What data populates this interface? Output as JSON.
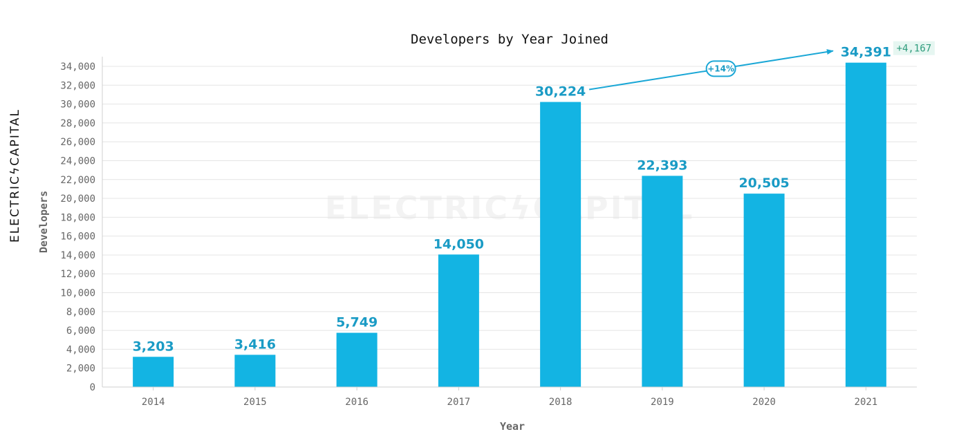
{
  "chart_data": {
    "type": "bar",
    "title": "Developers by Year Joined",
    "xlabel": "Year",
    "ylabel": "Developers",
    "categories": [
      "2014",
      "2015",
      "2016",
      "2017",
      "2018",
      "2019",
      "2020",
      "2021"
    ],
    "values": [
      3203,
      3416,
      5749,
      14050,
      30224,
      22393,
      20505,
      34391
    ],
    "value_labels": [
      "3,203",
      "3,416",
      "5,749",
      "14,050",
      "30,224",
      "22,393",
      "20,505",
      "34,391"
    ],
    "ylim": [
      0,
      35000
    ],
    "yticks": [
      0,
      2000,
      4000,
      6000,
      8000,
      10000,
      12000,
      14000,
      16000,
      18000,
      20000,
      22000,
      24000,
      26000,
      28000,
      30000,
      32000,
      34000
    ],
    "ytick_labels": [
      "0",
      "2,000",
      "4,000",
      "6,000",
      "8,000",
      "10,000",
      "12,000",
      "14,000",
      "16,000",
      "18,000",
      "20,000",
      "22,000",
      "24,000",
      "26,000",
      "28,000",
      "30,000",
      "32,000",
      "34,000"
    ],
    "grid": true,
    "annotation": {
      "from_category": "2018",
      "to_category": "2021",
      "percent_label": "+14%",
      "delta_label": "+4,167"
    },
    "bar_color": "#13b4e3",
    "label_color": "#1a9bc5",
    "delta_color": "#2e9c7c"
  },
  "branding": {
    "logo_text": "ELECTRICϟCAPITAL",
    "watermark_text": "ELECTRICϟCAPITAL"
  }
}
